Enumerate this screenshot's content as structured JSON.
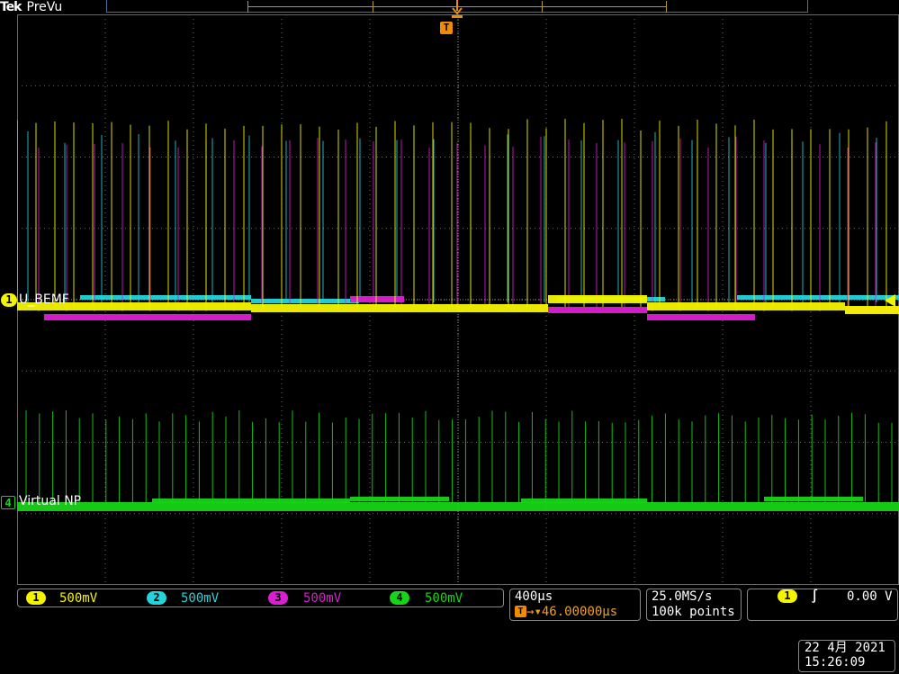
{
  "header": {
    "brand": "Tek",
    "mode": "PreVu"
  },
  "colors": {
    "ch1": "#f4f400",
    "ch2": "#24d4dc",
    "ch3": "#dc1ed2",
    "ch4": "#18d418",
    "trigger": "#f08c00",
    "grid": "#6a6a6a"
  },
  "channels": [
    {
      "number": "1",
      "label": "U_BEMF",
      "scale": "500mV"
    },
    {
      "number": "2",
      "label": "",
      "scale": "500mV"
    },
    {
      "number": "3",
      "label": "",
      "scale": "500mV"
    },
    {
      "number": "4",
      "label": "Virtual NP",
      "scale": "500mV"
    }
  ],
  "trigger_marker": "T",
  "horizontal": {
    "scale": "400µs",
    "delay": "▾46.00000µs"
  },
  "acquisition": {
    "sample_rate": "25.0MS/s",
    "record_length": "100k points"
  },
  "trigger": {
    "source": "1",
    "slope_icon": "rising-edge-icon",
    "slope_glyph": "∫",
    "level": "0.00 V"
  },
  "datetime": {
    "date": "22 4月  2021",
    "time": "15:26:09"
  }
}
